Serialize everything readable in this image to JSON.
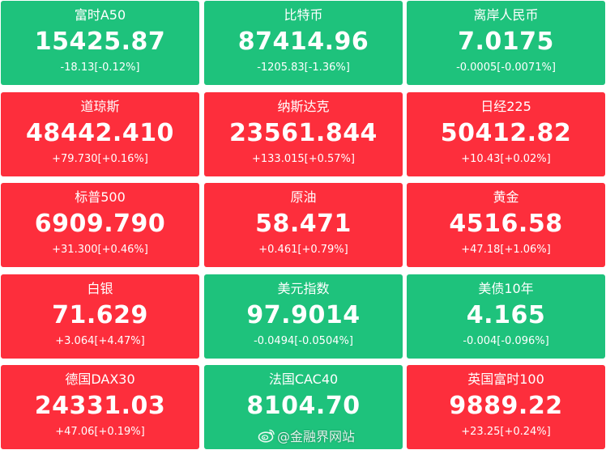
{
  "tiles": [
    {
      "name": "富时A50",
      "price": "15425.87",
      "change": "-18.13[-0.12%]",
      "trend": "down"
    },
    {
      "name": "比特币",
      "price": "87414.96",
      "change": "-1205.83[-1.36%]",
      "trend": "down"
    },
    {
      "name": "离岸人民币",
      "price": "7.0175",
      "change": "-0.0005[-0.0071%]",
      "trend": "down"
    },
    {
      "name": "道琼斯",
      "price": "48442.410",
      "change": "+79.730[+0.16%]",
      "trend": "up"
    },
    {
      "name": "纳斯达克",
      "price": "23561.844",
      "change": "+133.015[+0.57%]",
      "trend": "up"
    },
    {
      "name": "日经225",
      "price": "50412.82",
      "change": "+10.43[+0.02%]",
      "trend": "up"
    },
    {
      "name": "标普500",
      "price": "6909.790",
      "change": "+31.300[+0.46%]",
      "trend": "up"
    },
    {
      "name": "原油",
      "price": "58.471",
      "change": "+0.461[+0.79%]",
      "trend": "up"
    },
    {
      "name": "黄金",
      "price": "4516.58",
      "change": "+47.18[+1.06%]",
      "trend": "up"
    },
    {
      "name": "白银",
      "price": "71.629",
      "change": "+3.064[+4.47%]",
      "trend": "up"
    },
    {
      "name": "美元指数",
      "price": "97.9014",
      "change": "-0.0494[-0.0504%]",
      "trend": "down"
    },
    {
      "name": "美债10年",
      "price": "4.165",
      "change": "-0.004[-0.096%]",
      "trend": "down"
    },
    {
      "name": "德国DAX30",
      "price": "24331.03",
      "change": "+47.06[+0.19%]",
      "trend": "up"
    },
    {
      "name": "法国CAC40",
      "price": "8104.70",
      "change": "",
      "trend": "down"
    },
    {
      "name": "英国富时100",
      "price": "9889.22",
      "change": "+23.25[+0.24%]",
      "trend": "up"
    }
  ],
  "watermark": {
    "text": "@金融界网站",
    "icon": "weibo-icon"
  },
  "colors": {
    "up": "#fd2e3c",
    "down": "#1ec27c"
  }
}
